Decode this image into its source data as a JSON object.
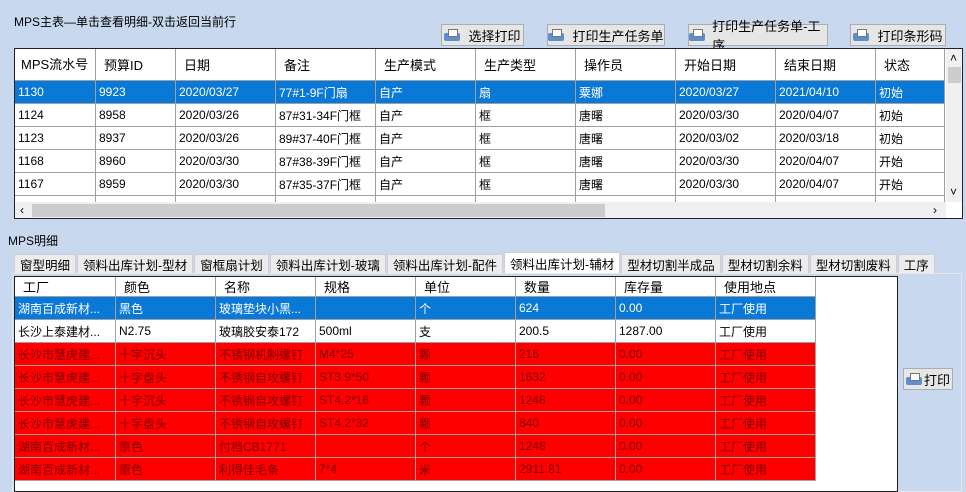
{
  "master": {
    "title": "MPS主表—单击查看明细-双击返回当前行",
    "buttons": [
      "选择打印",
      "打印生产任务单",
      "打印生产任务单-工序",
      "打印条形码"
    ],
    "columns": [
      "MPS流水号",
      "预算ID",
      "日期",
      "备注",
      "生产模式",
      "生产类型",
      "操作员",
      "开始日期",
      "结束日期",
      "状态"
    ],
    "rows": [
      [
        "1130",
        "9923",
        "2020/03/27",
        "77#1-9F门扇",
        "自产",
        "扇",
        "粟娜",
        "2020/03/27",
        "2021/04/10",
        "初始"
      ],
      [
        "1124",
        "8958",
        "2020/03/26",
        "87#31-34F门框",
        "自产",
        "框",
        "唐曙",
        "2020/03/30",
        "2020/04/07",
        "初始"
      ],
      [
        "1123",
        "8937",
        "2020/03/26",
        "89#37-40F门框",
        "自产",
        "框",
        "唐曙",
        "2020/03/02",
        "2020/03/18",
        "初始"
      ],
      [
        "1168",
        "8960",
        "2020/03/30",
        "87#38-39F门框",
        "自产",
        "框",
        "唐曙",
        "2020/03/30",
        "2020/04/07",
        "开始"
      ],
      [
        "1167",
        "8959",
        "2020/03/30",
        "87#35-37F门框",
        "自产",
        "框",
        "唐曙",
        "2020/03/30",
        "2020/04/07",
        "开始"
      ]
    ],
    "selected_row": 0,
    "scroll_left": "‹",
    "scroll_right": "›",
    "scroll_up": "˄",
    "scroll_down": "˅"
  },
  "detail": {
    "title": "MPS明细",
    "tabs": [
      "窗型明细",
      "领料出库计划-型材",
      "窗框扇计划",
      "领料出库计划-玻璃",
      "领料出库计划-配件",
      "领料出库计划-辅材",
      "型材切割半成品",
      "型材切割余料",
      "型材切割废料",
      "工序"
    ],
    "active_tab": 5,
    "columns": [
      "工厂",
      "颜色",
      "名称",
      "规格",
      "单位",
      "数量",
      "库存量",
      "使用地点"
    ],
    "rows": [
      {
        "style": "selected",
        "cells": [
          "湖南百成新材...",
          "黑色",
          "玻璃垫块小黑...",
          "",
          "个",
          "624",
          "0.00",
          "工厂使用"
        ]
      },
      {
        "style": "normal",
        "cells": [
          "长沙上泰建材...",
          "N2.75",
          "玻璃胶安泰172",
          "500ml",
          "支",
          "200.5",
          "1287.00",
          "工厂使用"
        ]
      },
      {
        "style": "shortage",
        "cells": [
          "长沙市慧虎建...",
          "十字沉头",
          "不锈钢机制螺钉",
          "M4*25",
          "颗",
          "216",
          "0.00",
          "工厂使用"
        ]
      },
      {
        "style": "shortage",
        "cells": [
          "长沙市慧虎建...",
          "十字盘头",
          "不锈钢自攻螺钉",
          "ST3.9*50",
          "颗",
          "1632",
          "0.00",
          "工厂使用"
        ]
      },
      {
        "style": "shortage",
        "cells": [
          "长沙市慧虎建...",
          "十字沉头",
          "不锈钢自攻螺钉",
          "ST4.2*16",
          "颗",
          "1248",
          "0.00",
          "工厂使用"
        ]
      },
      {
        "style": "shortage",
        "cells": [
          "长沙市慧虎建...",
          "十字盘头",
          "不锈钢自攻螺钉",
          "ST4.2*32",
          "颗",
          "840",
          "0.00",
          "工厂使用"
        ]
      },
      {
        "style": "shortage",
        "cells": [
          "湖南百成新材...",
          "原色",
          "付档CB1771",
          "",
          "个",
          "1248",
          "0.00",
          "工厂使用"
        ]
      },
      {
        "style": "shortage",
        "cells": [
          "湖南百成新材...",
          "原色",
          "利得佳毛条",
          "7*4",
          "米",
          "2911.81",
          "0.00",
          "工厂使用"
        ]
      }
    ],
    "print_button": "打印"
  },
  "colors": {
    "background": "#c7d8ef",
    "selection": "#0a78d7",
    "shortage_row": "#ff0000"
  }
}
